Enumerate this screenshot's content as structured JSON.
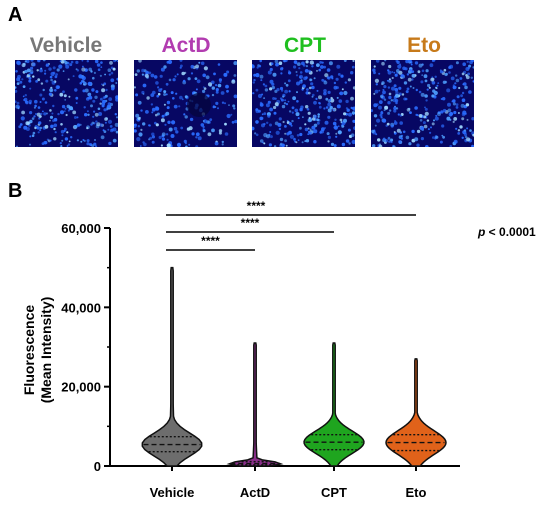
{
  "panels": {
    "a": "A",
    "b": "B"
  },
  "images": [
    {
      "label": "Vehicle",
      "color": "#777777"
    },
    {
      "label": "ActD",
      "color": "#b23cb0"
    },
    {
      "label": "CPT",
      "color": "#1fbf1f"
    },
    {
      "label": "Eto",
      "color": "#c77a1a"
    }
  ],
  "pvalue": {
    "prefix": "p",
    "suffix": " < 0.0001"
  },
  "chart_data": {
    "type": "violin",
    "ylabel": "Fluorescence (Mean Intensity)",
    "ylabel_lines": [
      "Fluorescence",
      "(Mean Intensity)"
    ],
    "ylim": [
      0,
      60000
    ],
    "yticks": [
      0,
      20000,
      40000,
      60000
    ],
    "ytick_labels": [
      "0",
      "20,000",
      "40,000",
      "60,000"
    ],
    "categories": [
      "Vehicle",
      "ActD",
      "CPT",
      "Eto"
    ],
    "series": [
      {
        "category": "Vehicle",
        "color": "#6d6d6d",
        "max": 50000,
        "q1": 3600,
        "median": 5400,
        "q3": 7400
      },
      {
        "category": "ActD",
        "color": "#8a2e8a",
        "max": 31000,
        "q1": 300,
        "median": 600,
        "q3": 1100
      },
      {
        "category": "CPT",
        "color": "#1fa51f",
        "max": 31000,
        "q1": 4100,
        "median": 6000,
        "q3": 7900
      },
      {
        "category": "Eto",
        "color": "#e0621a",
        "max": 27000,
        "q1": 3900,
        "median": 5900,
        "q3": 7900
      }
    ],
    "significance": [
      {
        "from": "Vehicle",
        "to": "ActD",
        "label": "****"
      },
      {
        "from": "Vehicle",
        "to": "CPT",
        "label": "****"
      },
      {
        "from": "Vehicle",
        "to": "Eto",
        "label": "****"
      }
    ]
  }
}
